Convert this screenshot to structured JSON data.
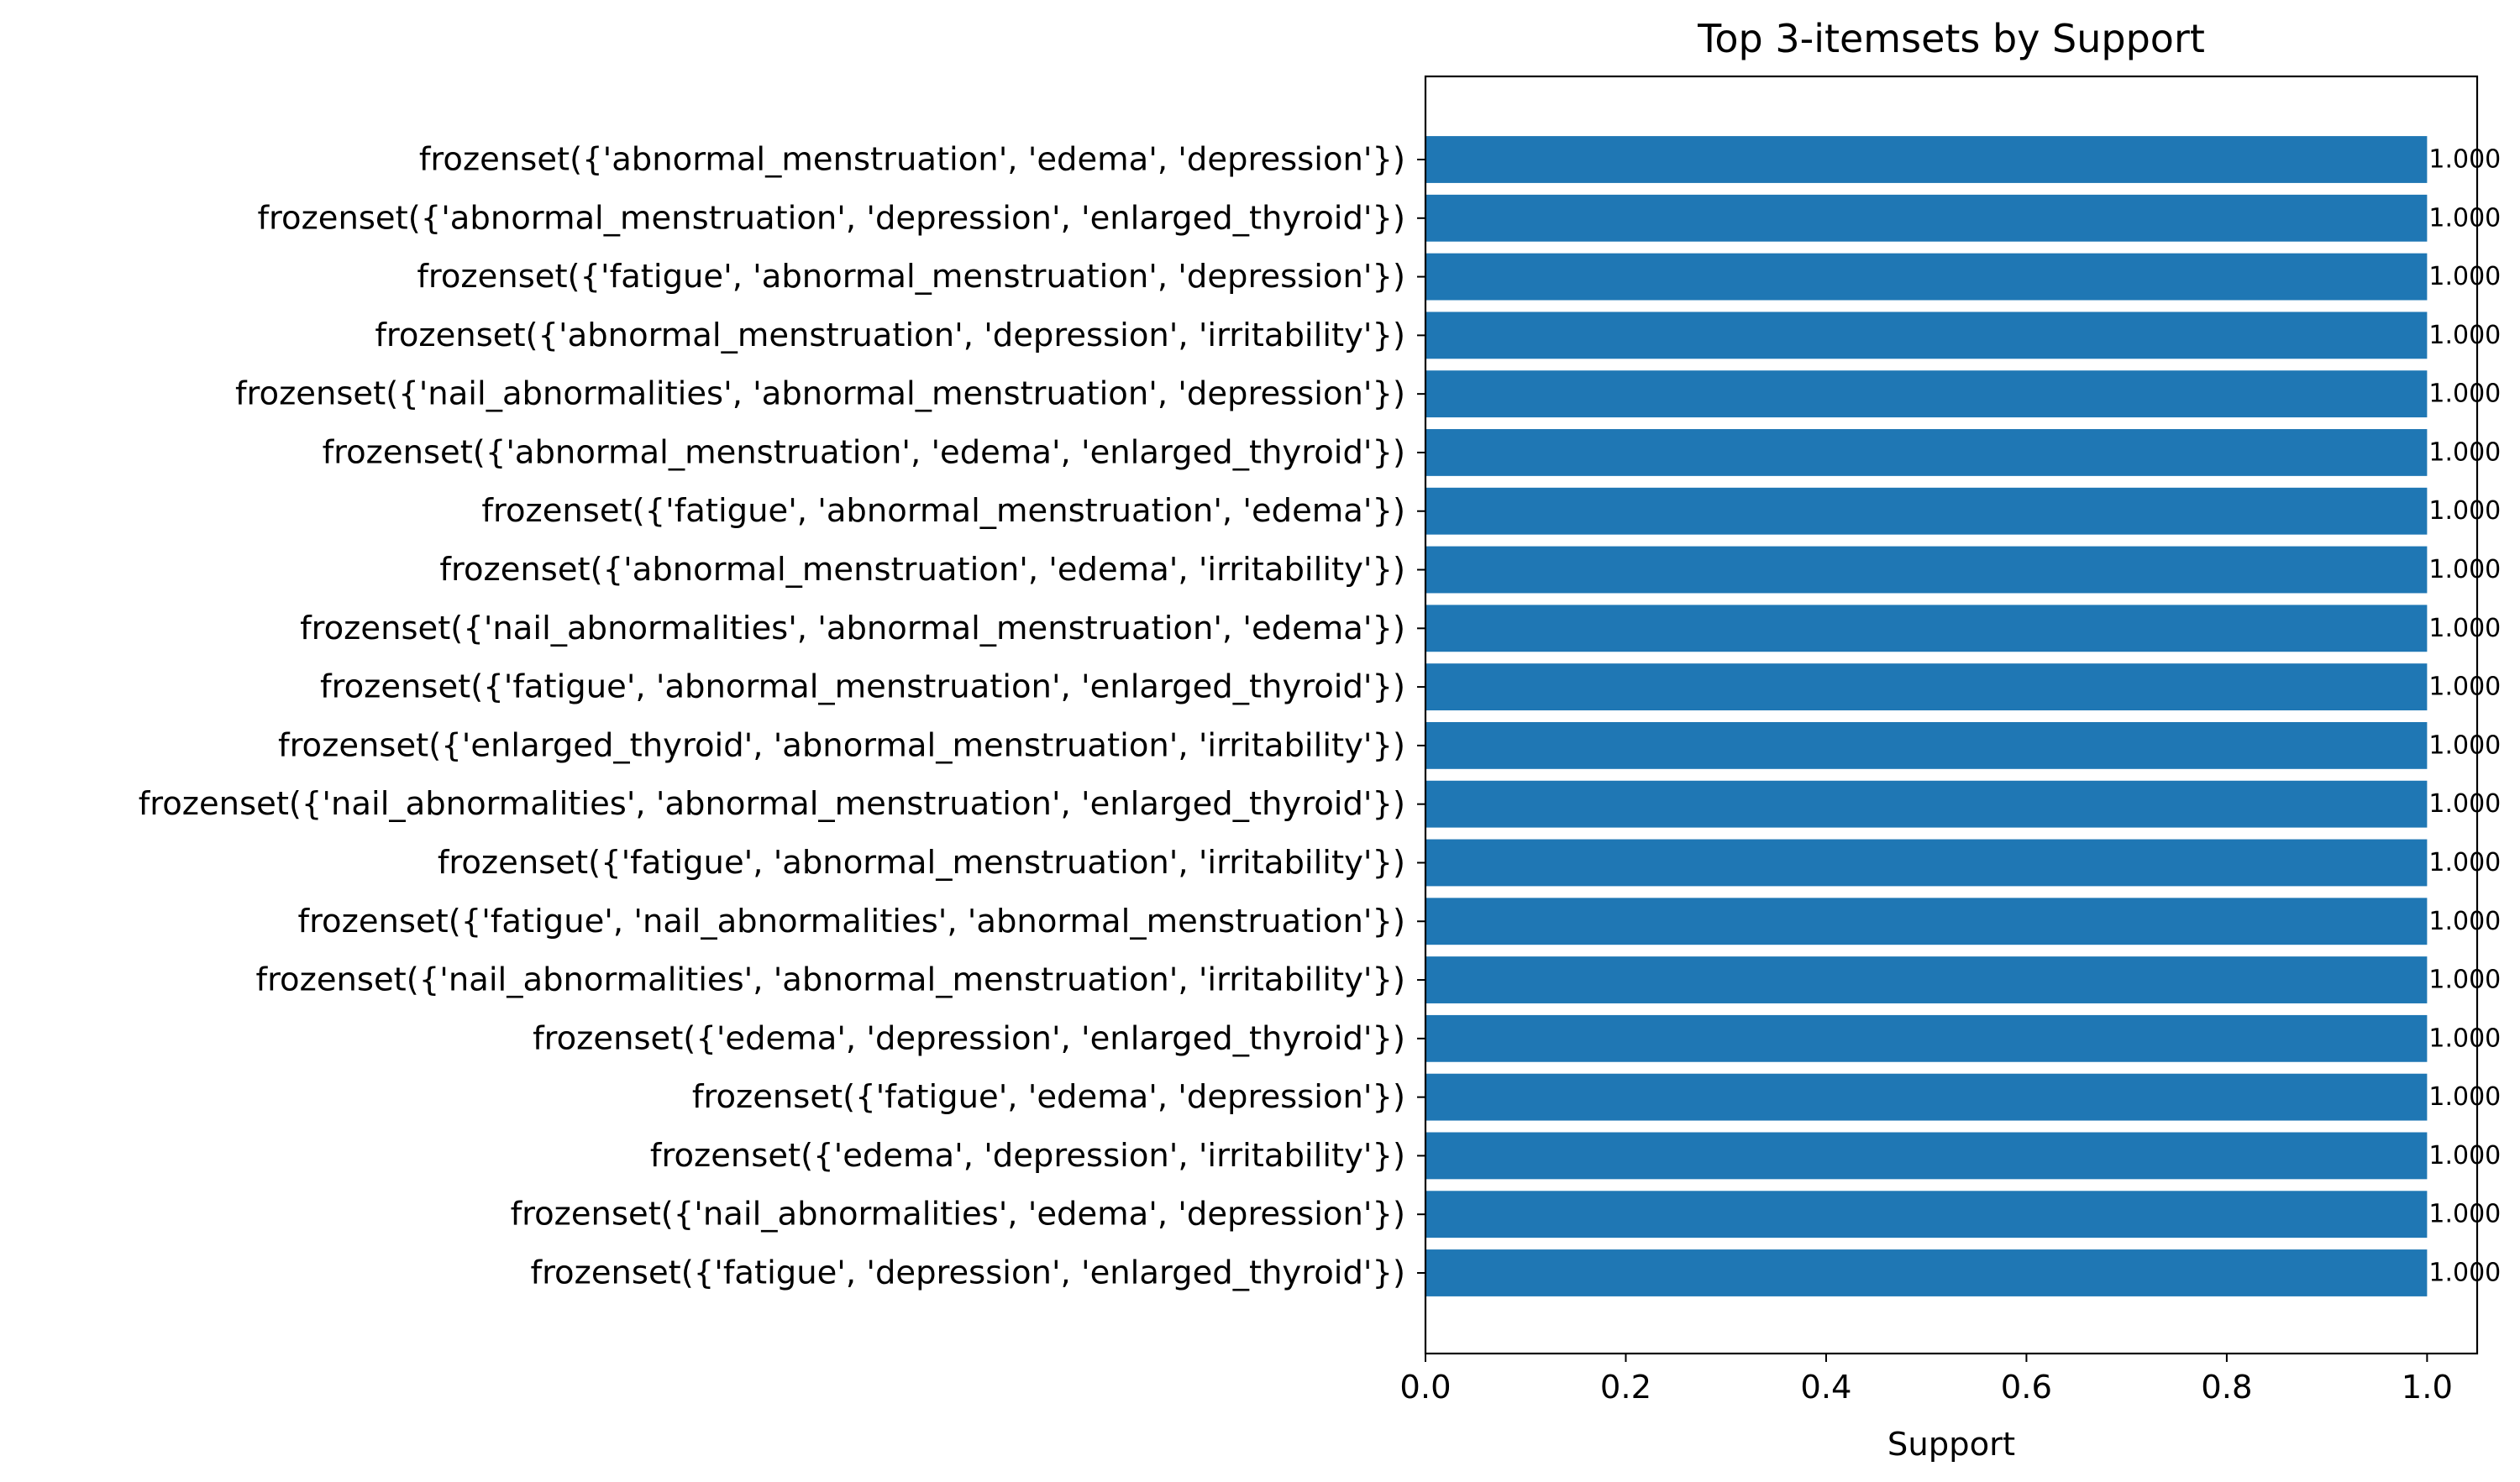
{
  "chart_data": {
    "type": "bar",
    "orientation": "horizontal",
    "title": "Top 3-itemsets by Support",
    "xlabel": "Support",
    "ylabel": "",
    "xlim": [
      0.0,
      1.05
    ],
    "xticks": [
      0.0,
      0.2,
      0.4,
      0.6,
      0.8,
      1.0
    ],
    "xtick_labels": [
      "0.0",
      "0.2",
      "0.4",
      "0.6",
      "0.8",
      "1.0"
    ],
    "grid": false,
    "bar_color": "#1f77b4",
    "categories": [
      "frozenset({'abnormal_menstruation', 'edema', 'depression'})",
      "frozenset({'abnormal_menstruation', 'depression', 'enlarged_thyroid'})",
      "frozenset({'fatigue', 'abnormal_menstruation', 'depression'})",
      "frozenset({'abnormal_menstruation', 'depression', 'irritability'})",
      "frozenset({'nail_abnormalities', 'abnormal_menstruation', 'depression'})",
      "frozenset({'abnormal_menstruation', 'edema', 'enlarged_thyroid'})",
      "frozenset({'fatigue', 'abnormal_menstruation', 'edema'})",
      "frozenset({'abnormal_menstruation', 'edema', 'irritability'})",
      "frozenset({'nail_abnormalities', 'abnormal_menstruation', 'edema'})",
      "frozenset({'fatigue', 'abnormal_menstruation', 'enlarged_thyroid'})",
      "frozenset({'enlarged_thyroid', 'abnormal_menstruation', 'irritability'})",
      "frozenset({'nail_abnormalities', 'abnormal_menstruation', 'enlarged_thyroid'})",
      "frozenset({'fatigue', 'abnormal_menstruation', 'irritability'})",
      "frozenset({'fatigue', 'nail_abnormalities', 'abnormal_menstruation'})",
      "frozenset({'nail_abnormalities', 'abnormal_menstruation', 'irritability'})",
      "frozenset({'edema', 'depression', 'enlarged_thyroid'})",
      "frozenset({'fatigue', 'edema', 'depression'})",
      "frozenset({'edema', 'depression', 'irritability'})",
      "frozenset({'nail_abnormalities', 'edema', 'depression'})",
      "frozenset({'fatigue', 'depression', 'enlarged_thyroid'})"
    ],
    "values": [
      1.0,
      1.0,
      1.0,
      1.0,
      1.0,
      1.0,
      1.0,
      1.0,
      1.0,
      1.0,
      1.0,
      1.0,
      1.0,
      1.0,
      1.0,
      1.0,
      1.0,
      1.0,
      1.0,
      1.0
    ],
    "value_labels": [
      "1.000",
      "1.000",
      "1.000",
      "1.000",
      "1.000",
      "1.000",
      "1.000",
      "1.000",
      "1.000",
      "1.000",
      "1.000",
      "1.000",
      "1.000",
      "1.000",
      "1.000",
      "1.000",
      "1.000",
      "1.000",
      "1.000",
      "1.000"
    ]
  }
}
